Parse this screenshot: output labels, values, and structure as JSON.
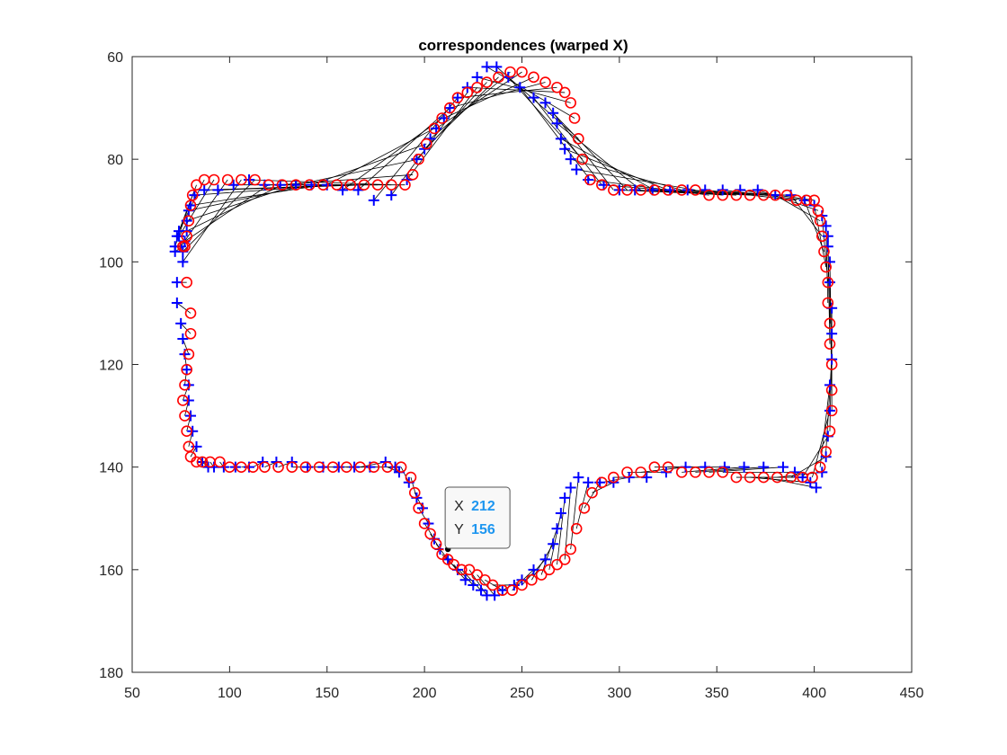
{
  "chart_data": {
    "type": "scatter",
    "title": "correspondences (warped X)",
    "xlabel": "",
    "ylabel": "",
    "xlim": [
      50,
      450
    ],
    "ylim": [
      60,
      180
    ],
    "y_reversed": true,
    "grid": false,
    "x_ticks": [
      50,
      100,
      150,
      200,
      250,
      300,
      350,
      400,
      450
    ],
    "y_ticks": [
      60,
      80,
      100,
      120,
      140,
      160,
      180
    ],
    "colors": {
      "plus": "#0000ff",
      "circle": "#ff0000",
      "line": "#000000"
    },
    "series": [
      {
        "marker": "plus",
        "color": "#0000ff",
        "x": [
          72,
          73,
          73,
          75,
          76,
          77,
          78,
          79,
          79,
          80,
          81,
          83,
          86,
          89,
          92,
          97,
          103,
          110,
          117,
          124,
          132,
          140,
          148,
          156,
          164,
          172,
          180,
          185,
          187,
          192,
          196,
          199,
          202,
          205,
          208,
          212,
          217,
          221,
          225,
          229,
          232,
          236,
          240,
          246,
          250,
          256,
          262,
          266,
          268,
          270,
          272,
          275,
          279,
          284,
          290,
          297,
          305,
          314,
          324,
          334,
          344,
          354,
          364,
          374,
          384,
          390,
          394,
          398,
          401,
          404,
          406,
          407,
          408,
          408,
          409,
          409,
          409,
          408,
          408,
          407,
          407,
          406,
          404,
          400,
          395,
          388,
          380,
          371,
          362,
          353,
          344,
          335,
          326,
          317,
          308,
          300,
          292,
          284,
          278,
          275,
          272,
          270,
          268,
          266,
          262,
          256,
          249,
          243,
          237,
          232,
          227,
          222,
          217,
          213,
          210,
          206,
          203,
          200,
          196,
          191,
          183,
          174,
          166,
          158,
          150,
          142,
          134,
          126,
          118,
          110,
          102,
          94,
          87,
          82,
          80,
          79,
          78,
          78,
          77,
          76,
          76,
          75,
          74,
          74,
          73,
          72
        ],
        "y": [
          98,
          104,
          108,
          112,
          115,
          118,
          121,
          124,
          127,
          130,
          133,
          136,
          139,
          140,
          140,
          140,
          140,
          140,
          139,
          139,
          139,
          140,
          140,
          140,
          140,
          140,
          139,
          140,
          141,
          143,
          146,
          148,
          151,
          154,
          156,
          158,
          160,
          162,
          163,
          164,
          165,
          165,
          164,
          163,
          162,
          160,
          158,
          155,
          152,
          149,
          146,
          144,
          142,
          143,
          143,
          143,
          142,
          142,
          141,
          140,
          140,
          140,
          140,
          140,
          140,
          141,
          142,
          143,
          144,
          141,
          138,
          134,
          129,
          124,
          119,
          114,
          109,
          104,
          100,
          97,
          95,
          93,
          91,
          89,
          88,
          87,
          87,
          86,
          86,
          86,
          86,
          86,
          86,
          86,
          86,
          86,
          85,
          84,
          82,
          80,
          78,
          76,
          73,
          71,
          69,
          68,
          66,
          64,
          62,
          62,
          64,
          66,
          68,
          70,
          72,
          74,
          76,
          78,
          80,
          84,
          87,
          88,
          86,
          86,
          85,
          85,
          85,
          85,
          85,
          84,
          85,
          86,
          86,
          87,
          89,
          90,
          92,
          94,
          96,
          98,
          100,
          97,
          95,
          94,
          95,
          97
        ]
      },
      {
        "marker": "circle",
        "color": "#ff0000",
        "x": [
          76,
          78,
          80,
          80,
          79,
          78,
          77,
          76,
          77,
          78,
          79,
          80,
          83,
          86,
          90,
          95,
          100,
          106,
          112,
          118,
          125,
          132,
          139,
          146,
          153,
          160,
          167,
          174,
          181,
          188,
          193,
          195,
          197,
          200,
          203,
          206,
          209,
          212,
          215,
          219,
          223,
          227,
          231,
          235,
          240,
          245,
          250,
          255,
          260,
          264,
          268,
          272,
          275,
          278,
          282,
          286,
          291,
          297,
          304,
          311,
          318,
          325,
          332,
          339,
          346,
          353,
          360,
          367,
          374,
          381,
          388,
          394,
          399,
          403,
          406,
          408,
          409,
          409,
          409,
          408,
          408,
          407,
          407,
          406,
          405,
          404,
          403,
          402,
          400,
          396,
          391,
          386,
          380,
          374,
          367,
          360,
          353,
          346,
          339,
          332,
          325,
          318,
          311,
          304,
          297,
          291,
          285,
          281,
          279,
          277,
          275,
          272,
          268,
          262,
          256,
          250,
          244,
          238,
          232,
          227,
          222,
          217,
          213,
          209,
          205,
          201,
          197,
          194,
          190,
          183,
          176,
          169,
          162,
          155,
          148,
          141,
          134,
          127,
          120,
          113,
          106,
          99,
          92,
          87,
          83,
          81,
          80,
          79,
          78,
          77
        ],
        "y": [
          97,
          104,
          110,
          114,
          118,
          121,
          124,
          127,
          130,
          133,
          136,
          138,
          139,
          139,
          139,
          139,
          140,
          140,
          140,
          140,
          140,
          140,
          140,
          140,
          140,
          140,
          140,
          140,
          140,
          140,
          142,
          145,
          148,
          151,
          153,
          155,
          157,
          158,
          159,
          160,
          160,
          161,
          162,
          163,
          164,
          164,
          163,
          162,
          161,
          160,
          159,
          158,
          156,
          152,
          148,
          145,
          143,
          142,
          141,
          141,
          140,
          140,
          141,
          141,
          141,
          141,
          142,
          142,
          142,
          142,
          142,
          142,
          142,
          140,
          137,
          133,
          129,
          125,
          120,
          116,
          112,
          108,
          104,
          101,
          98,
          95,
          92,
          90,
          88,
          88,
          88,
          87,
          87,
          87,
          87,
          87,
          87,
          87,
          86,
          86,
          86,
          86,
          86,
          86,
          86,
          85,
          84,
          80,
          76,
          72,
          69,
          67,
          66,
          65,
          64,
          63,
          63,
          64,
          65,
          66,
          67,
          68,
          70,
          72,
          74,
          77,
          80,
          83,
          85,
          85,
          85,
          85,
          85,
          85,
          85,
          85,
          85,
          85,
          85,
          84,
          84,
          84,
          84,
          84,
          85,
          87,
          89,
          92,
          95,
          97
        ]
      }
    ],
    "data_tip": {
      "x_label": "X",
      "x_value": "212",
      "y_label": "Y",
      "y_value": "156",
      "x": 212,
      "y": 156
    }
  }
}
